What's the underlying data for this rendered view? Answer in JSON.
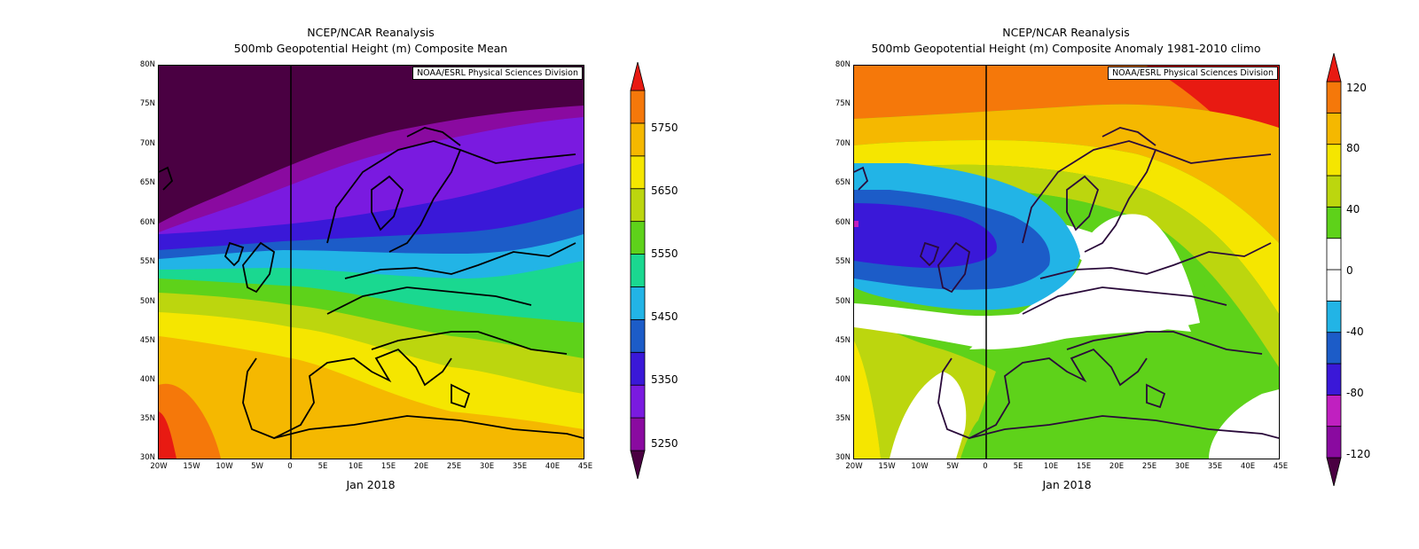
{
  "panels": [
    {
      "title1": "NCEP/NCAR Reanalysis",
      "title2": "500mb Geopotential Height (m) Composite Mean",
      "credit": "NOAA/ESRL Physical Sciences Division",
      "date": "Jan 2018",
      "lat_labels": [
        "80N",
        "75N",
        "70N",
        "65N",
        "60N",
        "55N",
        "50N",
        "45N",
        "40N",
        "35N",
        "30N"
      ],
      "lon_labels": [
        "20W",
        "15W",
        "10W",
        "5W",
        "0",
        "5E",
        "10E",
        "15E",
        "20E",
        "25E",
        "30E",
        "35E",
        "40E",
        "45E"
      ],
      "colorbar_labels": [
        "5750",
        "5650",
        "5550",
        "5450",
        "5350",
        "5250"
      ],
      "colorbar_colors": [
        "#4a0042",
        "#8a0aa0",
        "#7a1ae0",
        "#3a18d8",
        "#1c5cc8",
        "#22b4e6",
        "#1ad890",
        "#5ed21a",
        "#bcd60e",
        "#f5e600",
        "#f5b800",
        "#f5780a",
        "#e81a12"
      ]
    },
    {
      "title1": "NCEP/NCAR Reanalysis",
      "title2": "500mb Geopotential Height (m) Composite Anomaly 1981-2010 climo",
      "credit": "NOAA/ESRL Physical Sciences Division",
      "date": "Jan 2018",
      "lat_labels": [
        "80N",
        "75N",
        "70N",
        "65N",
        "60N",
        "55N",
        "50N",
        "45N",
        "40N",
        "35N",
        "30N"
      ],
      "lon_labels": [
        "20W",
        "15W",
        "10W",
        "5W",
        "0",
        "5E",
        "10E",
        "15E",
        "20E",
        "25E",
        "30E",
        "35E",
        "40E",
        "45E"
      ],
      "colorbar_labels": [
        "120",
        "80",
        "40",
        "0",
        "-40",
        "-80",
        "-120"
      ],
      "colorbar_colors": [
        "#4a0042",
        "#8a0aa0",
        "#c020c0",
        "#3a18d8",
        "#1c5cc8",
        "#22b4e6",
        "#ffffff",
        "#ffffff",
        "#5ed21a",
        "#bcd60e",
        "#f5e600",
        "#f5b800",
        "#f5780a",
        "#e81a12"
      ]
    }
  ]
}
